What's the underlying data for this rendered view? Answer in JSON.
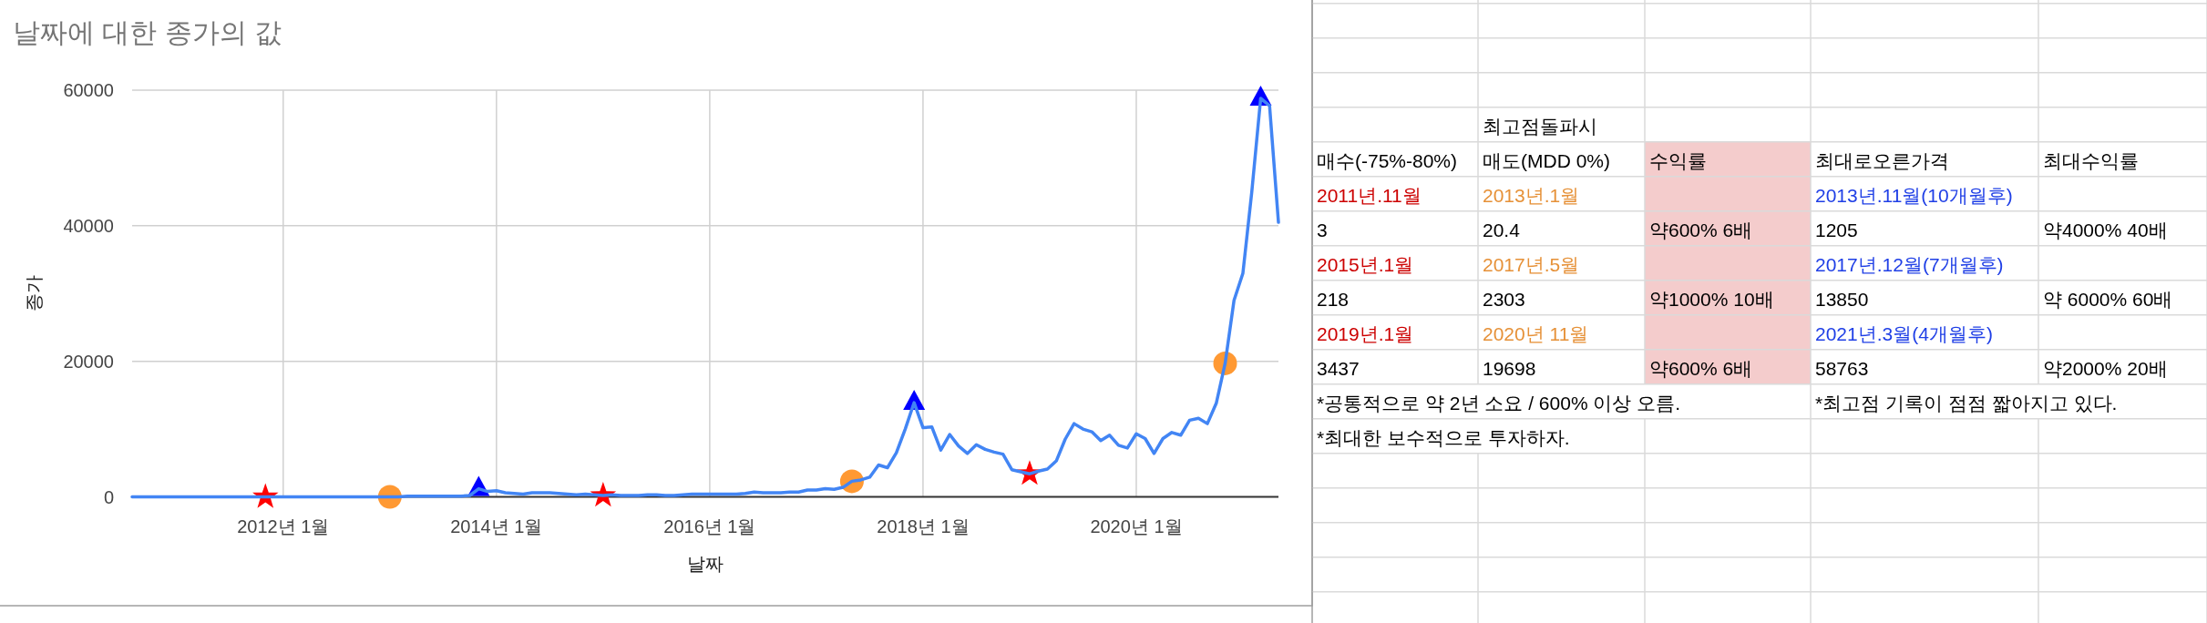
{
  "chart_data": [
    {
      "type": "line",
      "title": "날짜에 대한 종가의 값",
      "xlabel": "날짜",
      "ylabel": "종가",
      "x": [
        "2010-08",
        "2010-09",
        "2010-10",
        "2010-11",
        "2010-12",
        "2011-01",
        "2011-02",
        "2011-03",
        "2011-04",
        "2011-05",
        "2011-06",
        "2011-07",
        "2011-08",
        "2011-09",
        "2011-10",
        "2011-11",
        "2011-12",
        "2012-01",
        "2012-02",
        "2012-03",
        "2012-04",
        "2012-05",
        "2012-06",
        "2012-07",
        "2012-08",
        "2012-09",
        "2012-10",
        "2012-11",
        "2012-12",
        "2013-01",
        "2013-02",
        "2013-03",
        "2013-04",
        "2013-05",
        "2013-06",
        "2013-07",
        "2013-08",
        "2013-09",
        "2013-10",
        "2013-11",
        "2013-12",
        "2014-01",
        "2014-02",
        "2014-03",
        "2014-04",
        "2014-05",
        "2014-06",
        "2014-07",
        "2014-08",
        "2014-09",
        "2014-10",
        "2014-11",
        "2014-12",
        "2015-01",
        "2015-02",
        "2015-03",
        "2015-04",
        "2015-05",
        "2015-06",
        "2015-07",
        "2015-08",
        "2015-09",
        "2015-10",
        "2015-11",
        "2015-12",
        "2016-01",
        "2016-02",
        "2016-03",
        "2016-04",
        "2016-05",
        "2016-06",
        "2016-07",
        "2016-08",
        "2016-09",
        "2016-10",
        "2016-11",
        "2016-12",
        "2017-01",
        "2017-02",
        "2017-03",
        "2017-04",
        "2017-05",
        "2017-06",
        "2017-07",
        "2017-08",
        "2017-09",
        "2017-10",
        "2017-11",
        "2017-12",
        "2018-01",
        "2018-02",
        "2018-03",
        "2018-04",
        "2018-05",
        "2018-06",
        "2018-07",
        "2018-08",
        "2018-09",
        "2018-10",
        "2018-11",
        "2018-12",
        "2019-01",
        "2019-02",
        "2019-03",
        "2019-04",
        "2019-05",
        "2019-06",
        "2019-07",
        "2019-08",
        "2019-09",
        "2019-10",
        "2019-11",
        "2019-12",
        "2020-01",
        "2020-02",
        "2020-03",
        "2020-04",
        "2020-05",
        "2020-06",
        "2020-07",
        "2020-08",
        "2020-09",
        "2020-10",
        "2020-11",
        "2020-12",
        "2021-01",
        "2021-02",
        "2021-03",
        "2021-04",
        "2021-05"
      ],
      "xlim": [
        "2010-08",
        "2021-05"
      ],
      "xticks": [
        {
          "value": "2012-01",
          "label": "2012년 1월"
        },
        {
          "value": "2014-01",
          "label": "2014년 1월"
        },
        {
          "value": "2016-01",
          "label": "2016년 1월"
        },
        {
          "value": "2018-01",
          "label": "2018년 1월"
        },
        {
          "value": "2020-01",
          "label": "2020년 1월"
        }
      ],
      "ylim": [
        0,
        60000
      ],
      "yticks": [
        0,
        20000,
        40000,
        60000
      ],
      "grid": true,
      "series": [
        {
          "color": "#4285f4",
          "values": [
            0,
            0,
            0,
            0,
            0,
            0,
            0,
            0,
            0,
            0,
            0,
            0,
            0,
            0,
            0,
            0,
            0,
            0,
            0,
            0,
            0,
            0,
            0,
            0,
            0,
            0,
            0,
            0,
            0,
            0,
            0,
            100,
            100,
            100,
            100,
            100,
            100,
            100,
            200,
            1200,
            800,
            900,
            600,
            500,
            400,
            600,
            600,
            600,
            500,
            400,
            300,
            400,
            300,
            200,
            300,
            200,
            200,
            200,
            300,
            300,
            200,
            200,
            300,
            400,
            400,
            400,
            400,
            400,
            400,
            500,
            700,
            600,
            600,
            600,
            700,
            700,
            1000,
            1000,
            1200,
            1100,
            1400,
            2300,
            2500,
            2900,
            4700,
            4300,
            6500,
            10000,
            13900,
            10200,
            10300,
            6900,
            9200,
            7500,
            6400,
            7700,
            7000,
            6600,
            6300,
            4000,
            3700,
            3400,
            3800,
            4100,
            5300,
            8500,
            10800,
            10000,
            9600,
            8300,
            9100,
            7600,
            7200,
            9300,
            8600,
            6400,
            8600,
            9500,
            9100,
            11300,
            11600,
            10800,
            13800,
            19700,
            29000,
            33000,
            45000,
            58800,
            57700,
            40500
          ]
        },
        {
          "type": "scatter",
          "marker": "star",
          "color": "#ff0000",
          "x": [
            "2011-11",
            "2015-01",
            "2019-01"
          ],
          "values": [
            0,
            200,
            3400
          ]
        },
        {
          "type": "scatter",
          "marker": "circle",
          "color": "#ff9933",
          "x": [
            "2013-01",
            "2017-05",
            "2020-11"
          ],
          "values": [
            0,
            2300,
            19700
          ]
        },
        {
          "type": "scatter",
          "marker": "triangle",
          "color": "#0000ff",
          "x": [
            "2013-11",
            "2017-12",
            "2021-03"
          ],
          "values": [
            1200,
            13900,
            58800
          ]
        }
      ]
    },
    {
      "type": "other",
      "cell_labels": [
        [
          null,
          "최고점돌파시",
          null,
          null,
          null
        ],
        [
          "매수(-75%-80%)",
          "매도(MDD 0%)",
          "수익률",
          "최대로오른가격",
          "최대수익률"
        ],
        [
          "2011년.11월",
          "2013년.1월",
          null,
          "2013년.11월(10개월후)",
          null
        ],
        [
          "3",
          "20.4",
          "약600% 6배",
          "1205",
          "약4000% 40배"
        ],
        [
          "2015년.1월",
          "2017년.5월",
          null,
          "2017년.12월(7개월후)",
          null
        ],
        [
          "218",
          "2303",
          "약1000% 10배",
          "13850",
          "약 6000% 60배"
        ],
        [
          "2019년.1월",
          "2020년 11월",
          null,
          "2021년.3월(4개월후)",
          null
        ],
        [
          "3437",
          "19698",
          "약600% 6배",
          "58763",
          "약2000% 20배"
        ],
        [
          "*공통적으로 약 2년 소요 / 600% 이상 오름.",
          null,
          null,
          "*최고점 기록이 점점 짧아지고 있다.",
          null
        ],
        [
          "*최대한 보수적으로 투자하자.",
          null,
          null,
          null,
          null
        ]
      ]
    }
  ]
}
